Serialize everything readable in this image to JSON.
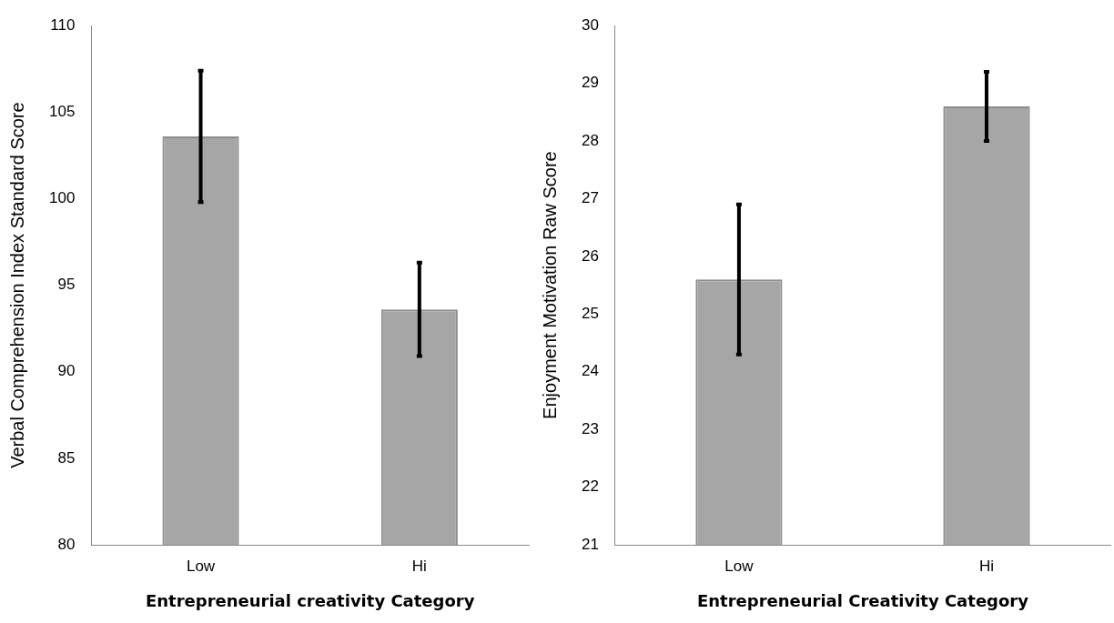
{
  "chart_data": [
    {
      "type": "bar",
      "xlabel": "Entrepreneurial creativity Category",
      "ylabel": "Verbal Comprehension Index Standard Score",
      "categories": [
        "Low",
        "Hi"
      ],
      "values": [
        103.6,
        93.6
      ],
      "errors": [
        3.8,
        2.7
      ],
      "color": "#a6a6a6",
      "ylim": [
        80,
        110
      ],
      "yticks": [
        80,
        85,
        90,
        95,
        100,
        105,
        110
      ],
      "grid": false,
      "legend": false
    },
    {
      "type": "bar",
      "xlabel": "Entrepreneurial Creativity Category",
      "ylabel": "Enjoyment Motivation Raw Score",
      "categories": [
        "Low",
        "Hi"
      ],
      "values": [
        25.6,
        28.6
      ],
      "errors": [
        1.3,
        0.6
      ],
      "color": "#a6a6a6",
      "ylim": [
        21,
        30
      ],
      "yticks": [
        21,
        22,
        23,
        24,
        25,
        26,
        27,
        28,
        29,
        30
      ],
      "grid": false,
      "legend": false
    }
  ]
}
